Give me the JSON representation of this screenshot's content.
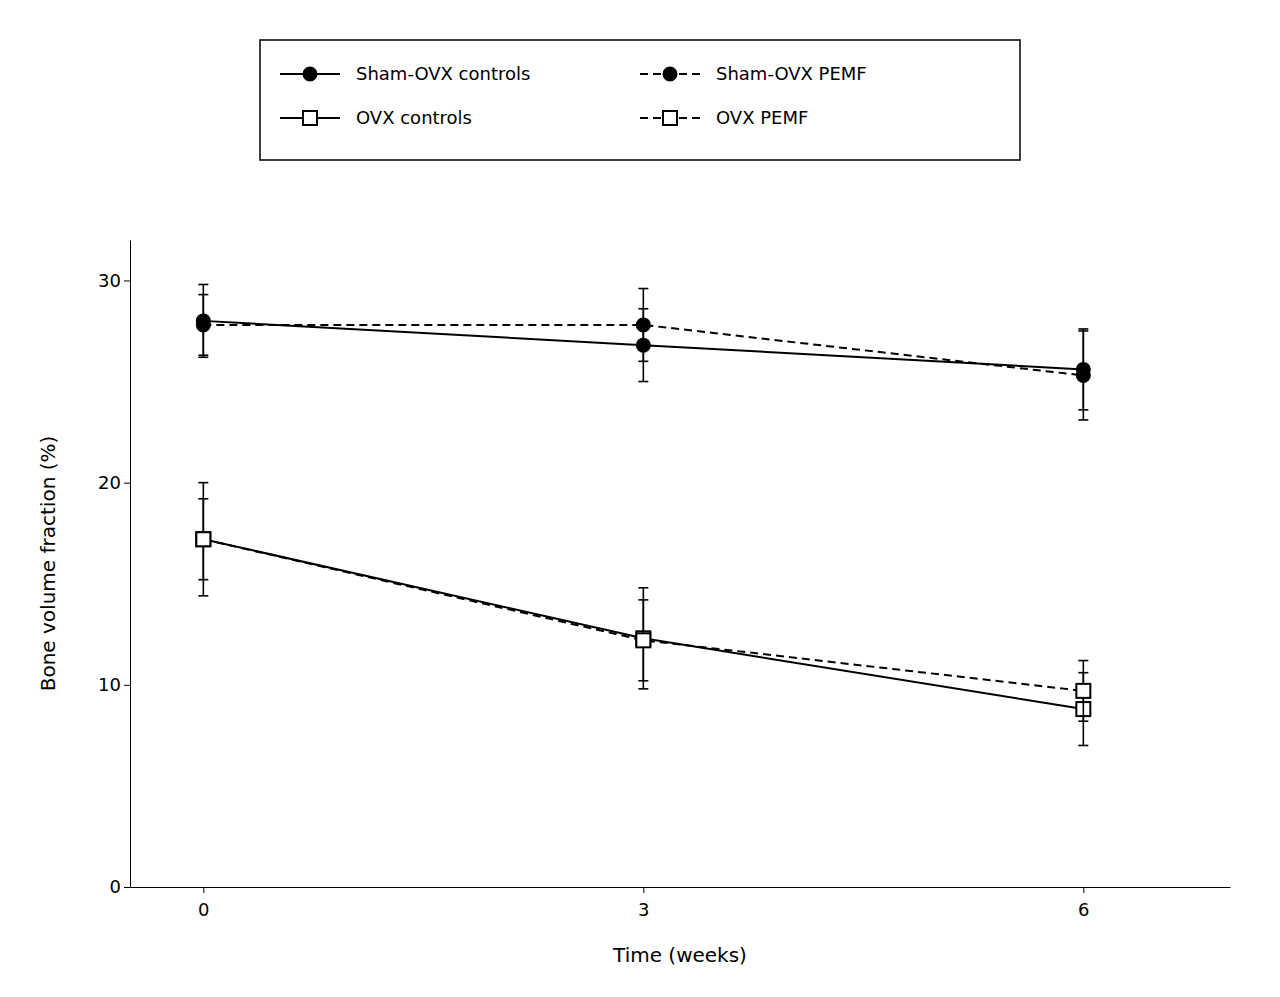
{
  "chart_data": {
    "type": "line",
    "x": [
      0,
      3,
      6
    ],
    "xlabel": "Time (weeks)",
    "ylabel": "Bone volume fraction (%)",
    "xlim": [
      -0.5,
      7.0
    ],
    "ylim": [
      0,
      32
    ],
    "xticks": [
      0,
      3,
      6
    ],
    "yticks": [
      0,
      10,
      20,
      30
    ],
    "grid": false,
    "legend": "top",
    "color": "#000000",
    "series": [
      {
        "name": "Sham-OVX controls",
        "values": [
          28.0,
          26.8,
          25.6
        ],
        "errors": [
          1.8,
          1.8,
          2.0
        ],
        "marker": "circle",
        "line_style": "solid"
      },
      {
        "name": "Sham-OVX PEMF",
        "values": [
          27.8,
          27.8,
          25.3
        ],
        "errors": [
          1.5,
          1.8,
          2.2
        ],
        "marker": "circle",
        "line_style": "dashed"
      },
      {
        "name": "OVX controls",
        "values": [
          17.2,
          12.3,
          8.8
        ],
        "errors": [
          2.8,
          2.5,
          1.8
        ],
        "marker": "open-square",
        "line_style": "solid"
      },
      {
        "name": "OVX PEMF",
        "values": [
          17.2,
          12.2,
          9.7
        ],
        "errors": [
          2.0,
          2.0,
          1.5
        ],
        "marker": "open-square",
        "line_style": "dashed"
      }
    ]
  }
}
